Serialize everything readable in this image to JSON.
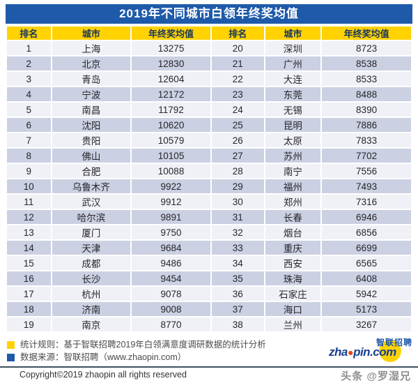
{
  "title": "2019年不同城市白领年终奖均值",
  "table": {
    "headers": [
      "排名",
      "城市",
      "年终奖均值",
      "排名",
      "城市",
      "年终奖均值"
    ],
    "rows": [
      [
        "1",
        "上海",
        "13275",
        "20",
        "深圳",
        "8723"
      ],
      [
        "2",
        "北京",
        "12830",
        "21",
        "广州",
        "8538"
      ],
      [
        "3",
        "青岛",
        "12604",
        "22",
        "大连",
        "8533"
      ],
      [
        "4",
        "宁波",
        "12172",
        "23",
        "东莞",
        "8488"
      ],
      [
        "5",
        "南昌",
        "11792",
        "24",
        "无锡",
        "8390"
      ],
      [
        "6",
        "沈阳",
        "10620",
        "25",
        "昆明",
        "7886"
      ],
      [
        "7",
        "贵阳",
        "10579",
        "26",
        "太原",
        "7833"
      ],
      [
        "8",
        "佛山",
        "10105",
        "27",
        "苏州",
        "7702"
      ],
      [
        "9",
        "合肥",
        "10088",
        "28",
        "南宁",
        "7556"
      ],
      [
        "10",
        "乌鲁木齐",
        "9922",
        "29",
        "福州",
        "7493"
      ],
      [
        "11",
        "武汉",
        "9912",
        "30",
        "郑州",
        "7316"
      ],
      [
        "12",
        "哈尔滨",
        "9891",
        "31",
        "长春",
        "6946"
      ],
      [
        "13",
        "厦门",
        "9750",
        "32",
        "烟台",
        "6856"
      ],
      [
        "14",
        "天津",
        "9684",
        "33",
        "重庆",
        "6699"
      ],
      [
        "15",
        "成都",
        "9486",
        "34",
        "西安",
        "6565"
      ],
      [
        "16",
        "长沙",
        "9454",
        "35",
        "珠海",
        "6408"
      ],
      [
        "17",
        "杭州",
        "9078",
        "36",
        "石家庄",
        "5942"
      ],
      [
        "18",
        "济南",
        "9008",
        "37",
        "海口",
        "5173"
      ],
      [
        "19",
        "南京",
        "8770",
        "38",
        "兰州",
        "3267"
      ]
    ]
  },
  "footer": {
    "stat_rule": "统计规则：基于智联招聘2019年白领满意度调研数据的统计分析",
    "data_source": "数据来源：智联招聘（www.zhaopin.com）",
    "copyright": "Copyright©2019 zhaopin all rights reserved",
    "watermark": "头条 @罗湿兄"
  },
  "logo": {
    "cn": "智联招聘",
    "pre": "zha",
    "dot": "●",
    "post": "pin.com"
  },
  "colors": {
    "title-bg": "#1e5aa9",
    "header-bg": "#ffd200",
    "header-text": "#17365d",
    "row-light": "#f0f1f6",
    "row-dark": "#cbd0e2",
    "logo-yellow": "#fcd306",
    "logo-blue": "#173f8f",
    "logo-red": "#e84a10"
  },
  "chart_data": {
    "type": "table",
    "title": "2019年不同城市白领年终奖均值",
    "columns": [
      "排名",
      "城市",
      "年终奖均值"
    ],
    "rows": [
      [
        1,
        "上海",
        13275
      ],
      [
        2,
        "北京",
        12830
      ],
      [
        3,
        "青岛",
        12604
      ],
      [
        4,
        "宁波",
        12172
      ],
      [
        5,
        "南昌",
        11792
      ],
      [
        6,
        "沈阳",
        10620
      ],
      [
        7,
        "贵阳",
        10579
      ],
      [
        8,
        "佛山",
        10105
      ],
      [
        9,
        "合肥",
        10088
      ],
      [
        10,
        "乌鲁木齐",
        9922
      ],
      [
        11,
        "武汉",
        9912
      ],
      [
        12,
        "哈尔滨",
        9891
      ],
      [
        13,
        "厦门",
        9750
      ],
      [
        14,
        "天津",
        9684
      ],
      [
        15,
        "成都",
        9486
      ],
      [
        16,
        "长沙",
        9454
      ],
      [
        17,
        "杭州",
        9078
      ],
      [
        18,
        "济南",
        9008
      ],
      [
        19,
        "南京",
        8770
      ],
      [
        20,
        "深圳",
        8723
      ],
      [
        21,
        "广州",
        8538
      ],
      [
        22,
        "大连",
        8533
      ],
      [
        23,
        "东莞",
        8488
      ],
      [
        24,
        "无锡",
        8390
      ],
      [
        25,
        "昆明",
        7886
      ],
      [
        26,
        "太原",
        7833
      ],
      [
        27,
        "苏州",
        7702
      ],
      [
        28,
        "南宁",
        7556
      ],
      [
        29,
        "福州",
        7493
      ],
      [
        30,
        "郑州",
        7316
      ],
      [
        31,
        "长春",
        6946
      ],
      [
        32,
        "烟台",
        6856
      ],
      [
        33,
        "重庆",
        6699
      ],
      [
        34,
        "西安",
        6565
      ],
      [
        35,
        "珠海",
        6408
      ],
      [
        36,
        "石家庄",
        5942
      ],
      [
        37,
        "海口",
        5173
      ],
      [
        38,
        "兰州",
        3267
      ]
    ],
    "source_note": "基于智联招聘2019年白领满意度调研数据的统计分析",
    "data_source": "智联招聘（www.zhaopin.com）"
  }
}
